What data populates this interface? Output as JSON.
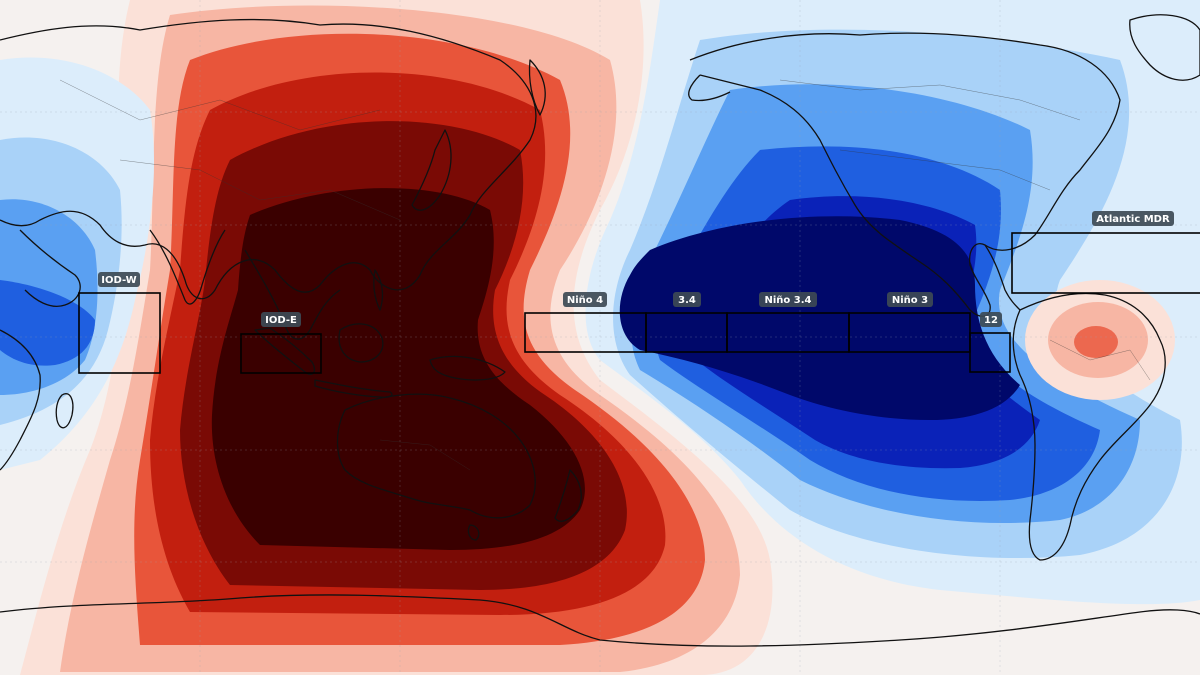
{
  "colors": {
    "warm_darkest": "#3a0000",
    "warm_dark": "#7a0a05",
    "warm_mid": "#c21f0f",
    "warm_light": "#e8553a",
    "warm_pale": "#f7b6a4",
    "warm_faint": "#fbe1d8",
    "cool_darkest": "#00086a",
    "cool_dark": "#0a22b8",
    "cool_mid": "#1f5fe0",
    "cool_light": "#5aa0f2",
    "cool_pale": "#a9d2f8",
    "cool_faint": "#dcedfb",
    "neutral": "#f5f1ef",
    "box_stroke": "#000000",
    "label_bg": "#3d4a55",
    "label_text": "#ffffff"
  },
  "regions": [
    {
      "id": "iod-w",
      "label": "IOD-W"
    },
    {
      "id": "iod-e",
      "label": "IOD-E"
    },
    {
      "id": "nino4",
      "label": "Niño 4"
    },
    {
      "id": "nino34-small",
      "label": "3.4"
    },
    {
      "id": "nino34",
      "label": "Niño 3.4"
    },
    {
      "id": "nino3",
      "label": "Niño 3"
    },
    {
      "id": "nino12",
      "label": "12"
    },
    {
      "id": "atlantic-mdr",
      "label": "Atlantic MDR"
    }
  ]
}
